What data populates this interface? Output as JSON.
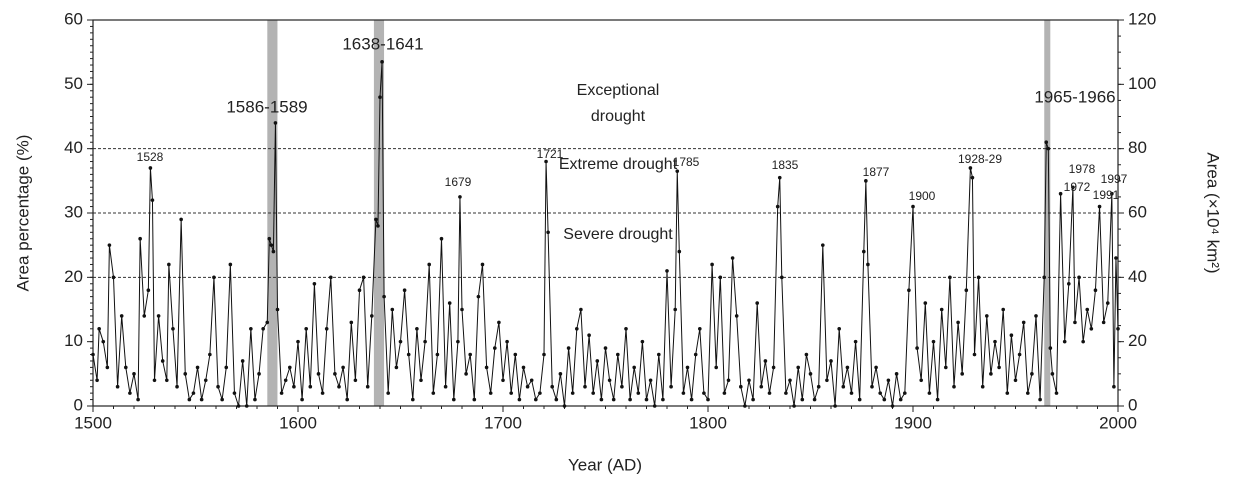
{
  "chart_data": {
    "type": "line",
    "y_label": "Area percentage (%)",
    "y2_label": "Area (×10⁴ km²)",
    "x_label": "Year (AD)",
    "xlim": [
      1500,
      2000
    ],
    "xticks": [
      1500,
      1600,
      1700,
      1800,
      1900,
      2000
    ],
    "ylim": [
      0,
      60
    ],
    "yticks": [
      0,
      10,
      20,
      30,
      40,
      50,
      60
    ],
    "y2lim": [
      0,
      120
    ],
    "y2ticks": [
      0,
      20,
      40,
      60,
      80,
      100,
      120
    ],
    "color": "#111111",
    "shade_color": "#b3b3b3",
    "shaded_periods": [
      [
        1586,
        1589
      ],
      [
        1638,
        1641
      ],
      [
        1965,
        1966
      ]
    ],
    "thresholds": [
      20,
      30,
      40
    ],
    "zones": [
      "Exceptional drought",
      "Extreme drought",
      "Severe drought"
    ],
    "annotations": [
      "1528",
      "1586-1589",
      "1638-1641",
      "1679",
      "1721",
      "1785",
      "1835",
      "1877",
      "1900",
      "1928-29",
      "1965-1966",
      "1972",
      "1978",
      "1991",
      "1997"
    ],
    "x": [
      1500,
      1502,
      1503,
      1505,
      1507,
      1508,
      1510,
      1512,
      1514,
      1516,
      1518,
      1520,
      1522,
      1523,
      1525,
      1527,
      1528,
      1529,
      1530,
      1532,
      1534,
      1536,
      1537,
      1539,
      1541,
      1543,
      1545,
      1547,
      1549,
      1551,
      1553,
      1555,
      1557,
      1559,
      1561,
      1563,
      1565,
      1567,
      1569,
      1571,
      1573,
      1575,
      1577,
      1579,
      1581,
      1583,
      1585,
      1586,
      1587,
      1588,
      1589,
      1590,
      1592,
      1594,
      1596,
      1598,
      1600,
      1602,
      1604,
      1606,
      1608,
      1610,
      1612,
      1614,
      1616,
      1618,
      1620,
      1622,
      1624,
      1626,
      1628,
      1630,
      1632,
      1634,
      1636,
      1638,
      1639,
      1640,
      1641,
      1642,
      1644,
      1646,
      1648,
      1650,
      1652,
      1654,
      1656,
      1658,
      1660,
      1662,
      1664,
      1666,
      1668,
      1670,
      1672,
      1674,
      1676,
      1678,
      1679,
      1680,
      1682,
      1684,
      1686,
      1688,
      1690,
      1692,
      1694,
      1696,
      1698,
      1700,
      1702,
      1704,
      1706,
      1708,
      1710,
      1712,
      1714,
      1716,
      1718,
      1720,
      1721,
      1722,
      1724,
      1726,
      1728,
      1730,
      1732,
      1734,
      1736,
      1738,
      1740,
      1742,
      1744,
      1746,
      1748,
      1750,
      1752,
      1754,
      1756,
      1758,
      1760,
      1762,
      1764,
      1766,
      1768,
      1770,
      1772,
      1774,
      1776,
      1778,
      1780,
      1782,
      1784,
      1785,
      1786,
      1788,
      1790,
      1792,
      1794,
      1796,
      1798,
      1800,
      1802,
      1804,
      1806,
      1808,
      1810,
      1812,
      1814,
      1816,
      1818,
      1820,
      1822,
      1824,
      1826,
      1828,
      1830,
      1832,
      1834,
      1835,
      1836,
      1838,
      1840,
      1842,
      1844,
      1846,
      1848,
      1850,
      1852,
      1854,
      1856,
      1858,
      1860,
      1862,
      1864,
      1866,
      1868,
      1870,
      1872,
      1874,
      1876,
      1877,
      1878,
      1880,
      1882,
      1884,
      1886,
      1888,
      1890,
      1892,
      1894,
      1896,
      1898,
      1900,
      1902,
      1904,
      1906,
      1908,
      1910,
      1912,
      1914,
      1916,
      1918,
      1920,
      1922,
      1924,
      1926,
      1928,
      1929,
      1930,
      1932,
      1934,
      1936,
      1938,
      1940,
      1942,
      1944,
      1946,
      1948,
      1950,
      1952,
      1954,
      1956,
      1958,
      1960,
      1962,
      1964,
      1965,
      1966,
      1967,
      1968,
      1970,
      1972,
      1974,
      1976,
      1978,
      1979,
      1981,
      1983,
      1985,
      1987,
      1989,
      1991,
      1993,
      1995,
      1997,
      1998,
      1999,
      2000
    ],
    "values": [
      8,
      4,
      12,
      10,
      6,
      25,
      20,
      3,
      14,
      6,
      2,
      5,
      1,
      26,
      14,
      18,
      37,
      32,
      4,
      14,
      7,
      4,
      22,
      12,
      3,
      29,
      5,
      1,
      2,
      6,
      1,
      4,
      8,
      20,
      3,
      1,
      6,
      22,
      2,
      0,
      7,
      0,
      12,
      1,
      5,
      12,
      13,
      26,
      25,
      24,
      44,
      15,
      2,
      4,
      6,
      3,
      10,
      1,
      12,
      3,
      19,
      5,
      2,
      12,
      20,
      5,
      3,
      6,
      1,
      13,
      4,
      18,
      20,
      3,
      14,
      29,
      28,
      48,
      53.5,
      17,
      2,
      15,
      6,
      10,
      18,
      8,
      1,
      12,
      4,
      10,
      22,
      2,
      8,
      26,
      3,
      16,
      1,
      10,
      32.5,
      15,
      5,
      8,
      1,
      17,
      22,
      6,
      2,
      9,
      13,
      4,
      10,
      2,
      8,
      1,
      6,
      3,
      4,
      1,
      2,
      8,
      38,
      27,
      3,
      1,
      5,
      0,
      9,
      2,
      12,
      15,
      3,
      11,
      2,
      7,
      1,
      9,
      4,
      1,
      8,
      3,
      12,
      1,
      6,
      2,
      10,
      1,
      4,
      0,
      8,
      1,
      21,
      3,
      15,
      36.5,
      24,
      2,
      6,
      1,
      8,
      12,
      2,
      1,
      22,
      6,
      20,
      2,
      4,
      23,
      14,
      3,
      0,
      4,
      1,
      16,
      3,
      7,
      2,
      6,
      31,
      35.5,
      20,
      2,
      4,
      0,
      6,
      1,
      8,
      5,
      1,
      3,
      25,
      4,
      7,
      0,
      12,
      3,
      6,
      2,
      10,
      1,
      24,
      35,
      22,
      3,
      6,
      2,
      1,
      4,
      0,
      5,
      1,
      2,
      18,
      31,
      9,
      4,
      16,
      2,
      10,
      1,
      15,
      6,
      20,
      3,
      13,
      5,
      18,
      37,
      35.5,
      8,
      20,
      3,
      14,
      5,
      10,
      6,
      15,
      2,
      11,
      4,
      8,
      13,
      2,
      5,
      14,
      1,
      20,
      41,
      40,
      9,
      5,
      2,
      33,
      10,
      19,
      34,
      13,
      20,
      10,
      15,
      12,
      18,
      31,
      13,
      16,
      33,
      3,
      23,
      12
    ]
  }
}
